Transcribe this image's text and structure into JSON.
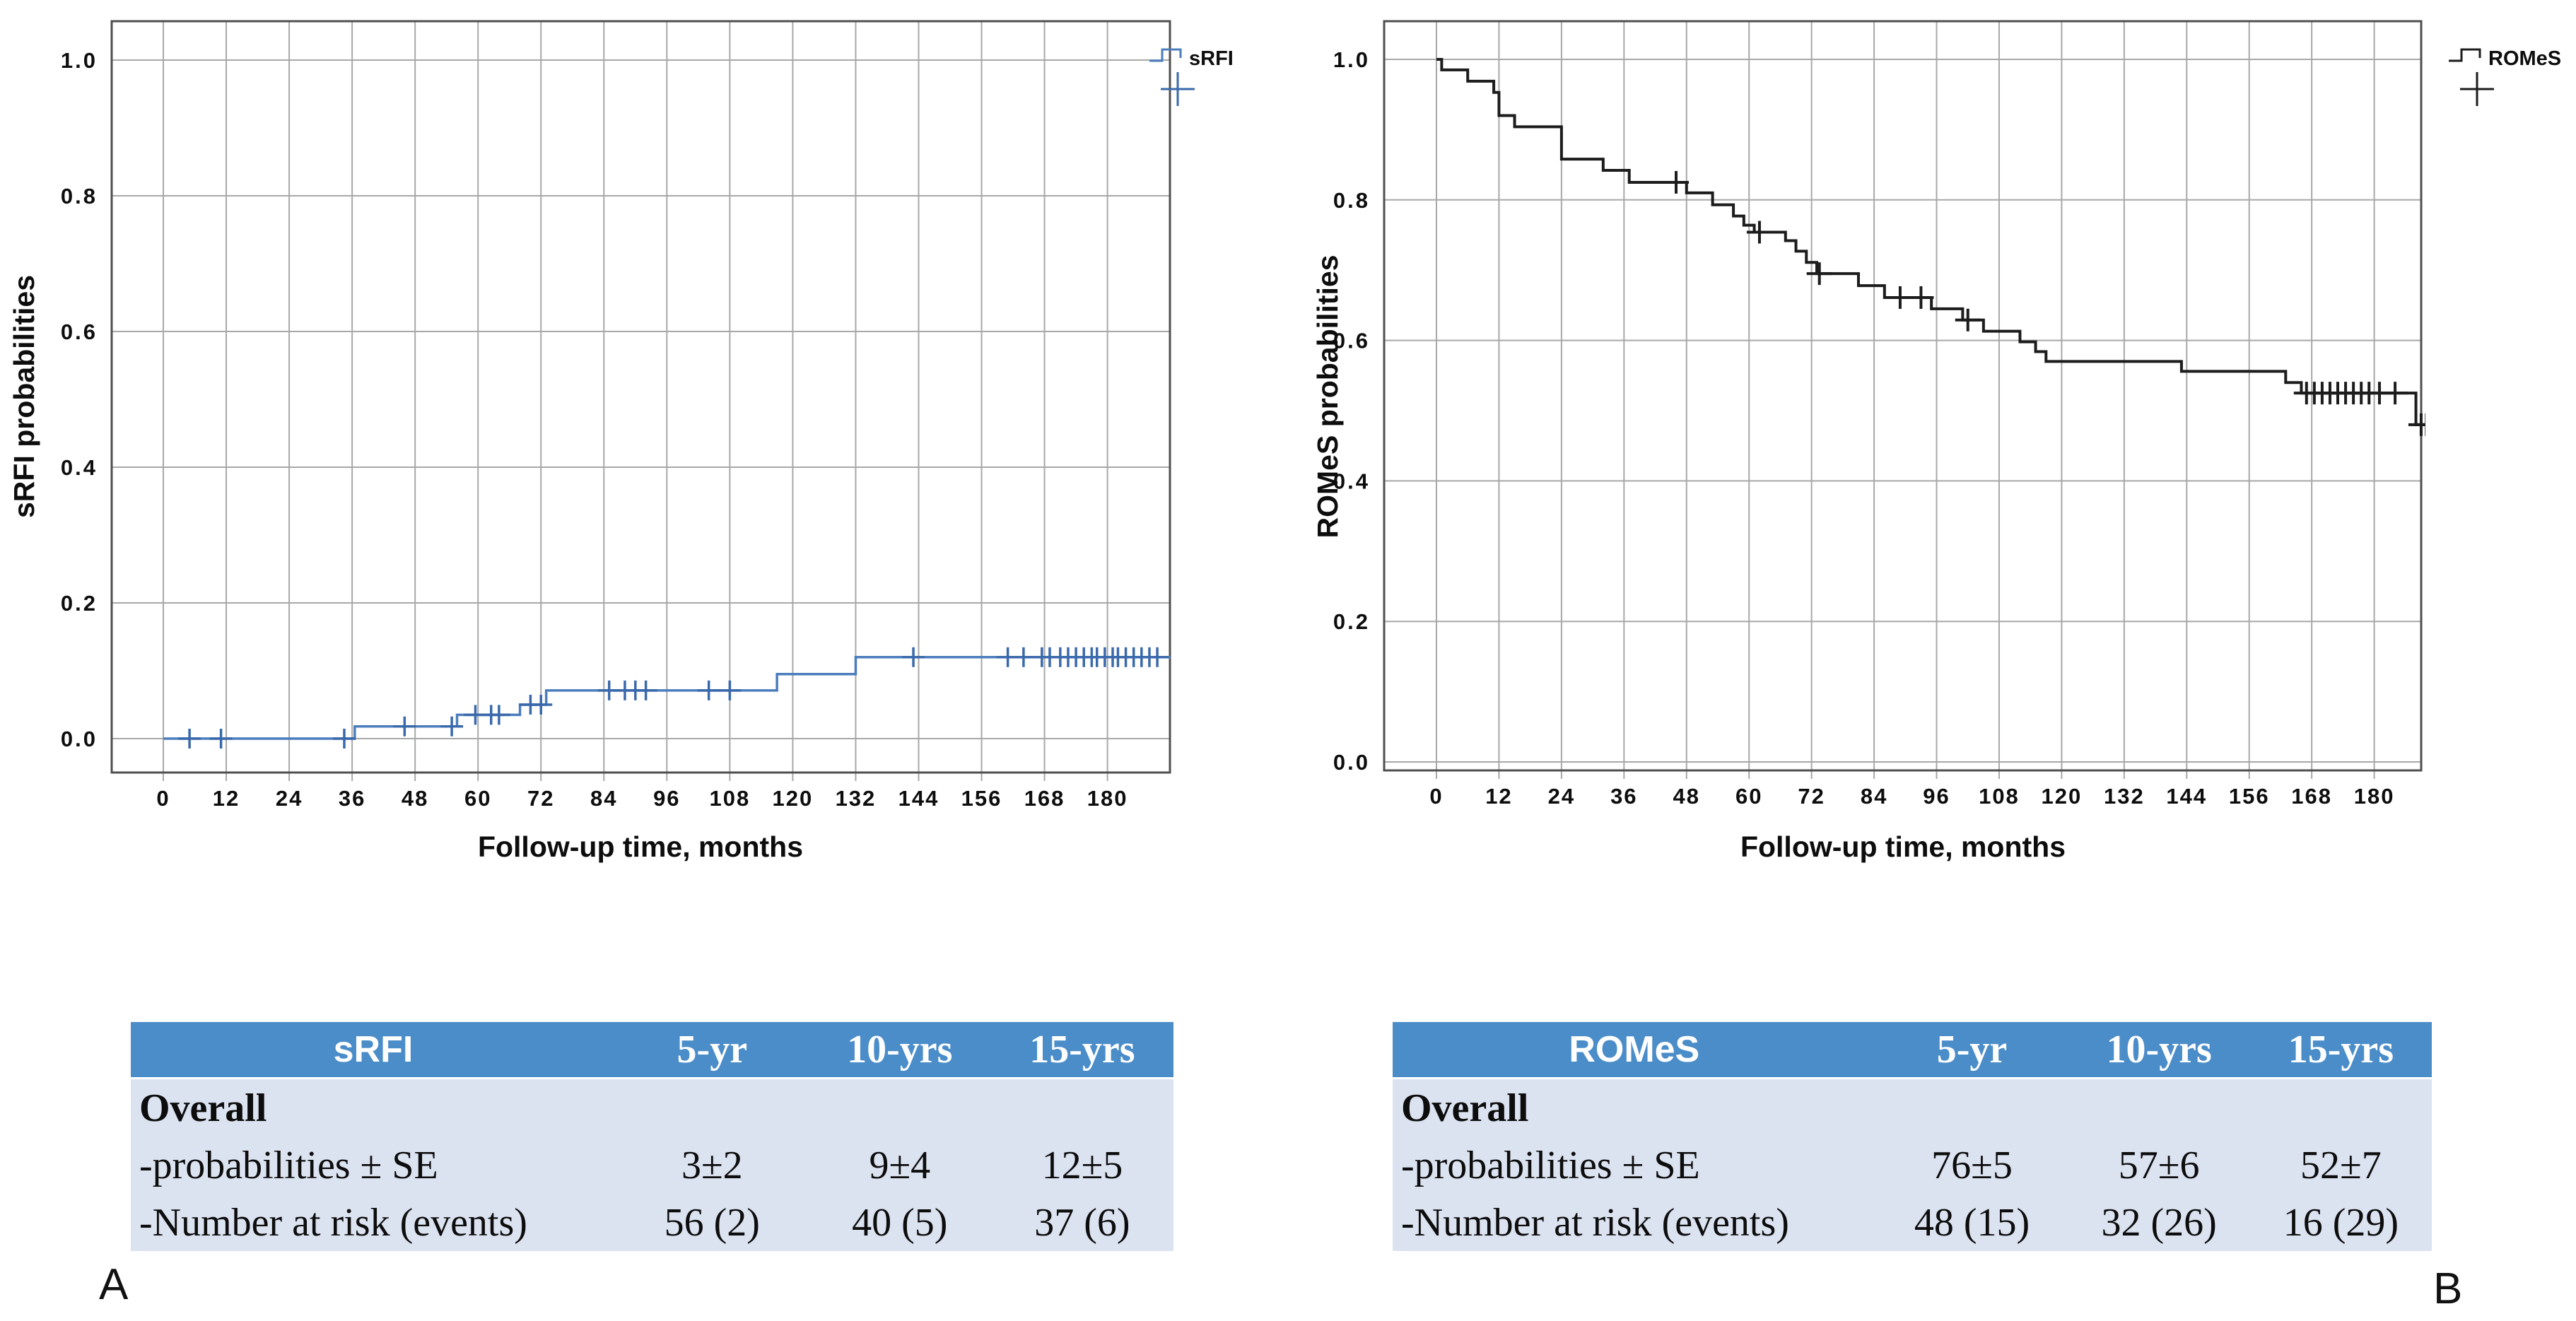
{
  "colors": {
    "srfi_line": "#4b7dbd",
    "srfi_censor": "#3a69ab",
    "romes_line": "#1c1c1c",
    "romes_censor": "#1c1c1c",
    "gridline": "#a8a8a8",
    "frame": "#4f4f4f",
    "table_header_bg": "#4b8dc9",
    "table_body_bg": "#dbe2f0",
    "table_header_text": "#ffffff"
  },
  "chart_data": [
    {
      "type": "line",
      "subtype": "kaplan-meier-step",
      "series_id": "sRFI",
      "legend_label": "sRFI",
      "legend_censor_marker": "plus",
      "xlabel": "Follow-up time, months",
      "ylabel": "sRFI probabilities",
      "x_ticks": [
        0,
        12,
        24,
        36,
        48,
        60,
        72,
        84,
        96,
        108,
        120,
        132,
        144,
        156,
        168,
        180
      ],
      "y_ticks": [
        0.0,
        0.2,
        0.4,
        0.6,
        0.8,
        1.0
      ],
      "xlim": [
        0,
        192
      ],
      "ylim": [
        0.0,
        1.0
      ],
      "grid": true,
      "legend_position": "top-right-outside",
      "steps": [
        [
          0,
          0.0
        ],
        [
          36.5,
          0.018
        ],
        [
          56,
          0.035
        ],
        [
          68,
          0.05
        ],
        [
          73,
          0.071
        ],
        [
          117,
          0.095
        ],
        [
          132,
          0.12
        ]
      ],
      "end_time": 192,
      "censor_times": [
        5,
        11,
        34.5,
        46,
        55,
        59.5,
        62.5,
        64,
        70,
        72,
        85,
        88,
        90,
        92,
        104,
        108,
        143,
        161,
        164,
        167.5,
        169,
        171,
        172.5,
        174,
        175.5,
        177,
        178,
        179.5,
        181,
        182,
        183.5,
        185,
        186.5,
        188,
        189.5
      ]
    },
    {
      "type": "line",
      "subtype": "kaplan-meier-step",
      "series_id": "ROMeS",
      "legend_label": "ROMeS",
      "legend_censor_marker": "plus",
      "xlabel": "Follow-up time, months",
      "ylabel": "ROMeS probabilities",
      "x_ticks": [
        0,
        12,
        24,
        36,
        48,
        60,
        72,
        84,
        96,
        108,
        120,
        132,
        144,
        156,
        168,
        180
      ],
      "y_ticks": [
        0.0,
        0.2,
        0.4,
        0.6,
        0.8,
        1.0
      ],
      "xlim": [
        0,
        189
      ],
      "ylim": [
        0.0,
        1.0
      ],
      "grid": true,
      "legend_position": "top-right-outside",
      "steps": [
        [
          0,
          1.0
        ],
        [
          1,
          0.985
        ],
        [
          6,
          0.969
        ],
        [
          11,
          0.953
        ],
        [
          12,
          0.92
        ],
        [
          15,
          0.904
        ],
        [
          24,
          0.858
        ],
        [
          32,
          0.842
        ],
        [
          37,
          0.825
        ],
        [
          48,
          0.81
        ],
        [
          53,
          0.793
        ],
        [
          57,
          0.777
        ],
        [
          59,
          0.764
        ],
        [
          61,
          0.754
        ],
        [
          67,
          0.742
        ],
        [
          69,
          0.727
        ],
        [
          71,
          0.711
        ],
        [
          73,
          0.695
        ],
        [
          81,
          0.678
        ],
        [
          86,
          0.661
        ],
        [
          95,
          0.645
        ],
        [
          101,
          0.629
        ],
        [
          105,
          0.613
        ],
        [
          112,
          0.598
        ],
        [
          115,
          0.584
        ],
        [
          117,
          0.57
        ],
        [
          143,
          0.556
        ],
        [
          163,
          0.54
        ],
        [
          166,
          0.525
        ],
        [
          188,
          0.48
        ]
      ],
      "end_time": 190,
      "censor_times": [
        46,
        62,
        73.5,
        89,
        93,
        102,
        167,
        168.5,
        170,
        171.5,
        173,
        174.5,
        176,
        177.5,
        179,
        181,
        184,
        189,
        190
      ]
    }
  ],
  "tables": [
    {
      "header": [
        "sRFI",
        "5-yr",
        "10-yrs",
        "15-yrs"
      ],
      "rows": [
        {
          "label": "Overall",
          "bold": true,
          "values": [
            "",
            "",
            ""
          ]
        },
        {
          "label": "-probabilities ± SE",
          "bold": false,
          "values": [
            "3±2",
            "9±4",
            "12±5"
          ]
        },
        {
          "label": "-Number at risk (events)",
          "bold": false,
          "values": [
            "56 (2)",
            "40 (5)",
            "37 (6)"
          ]
        }
      ]
    },
    {
      "header": [
        "ROMeS",
        "5-yr",
        "10-yrs",
        "15-yrs"
      ],
      "rows": [
        {
          "label": "Overall",
          "bold": true,
          "values": [
            "",
            "",
            ""
          ]
        },
        {
          "label": "-probabilities ± SE",
          "bold": false,
          "values": [
            "76±5",
            "57±6",
            "52±7"
          ]
        },
        {
          "label": "-Number at risk (events)",
          "bold": false,
          "values": [
            "48 (15)",
            "32 (26)",
            "16 (29)"
          ]
        }
      ]
    }
  ],
  "panel_labels": [
    "A",
    "B"
  ]
}
